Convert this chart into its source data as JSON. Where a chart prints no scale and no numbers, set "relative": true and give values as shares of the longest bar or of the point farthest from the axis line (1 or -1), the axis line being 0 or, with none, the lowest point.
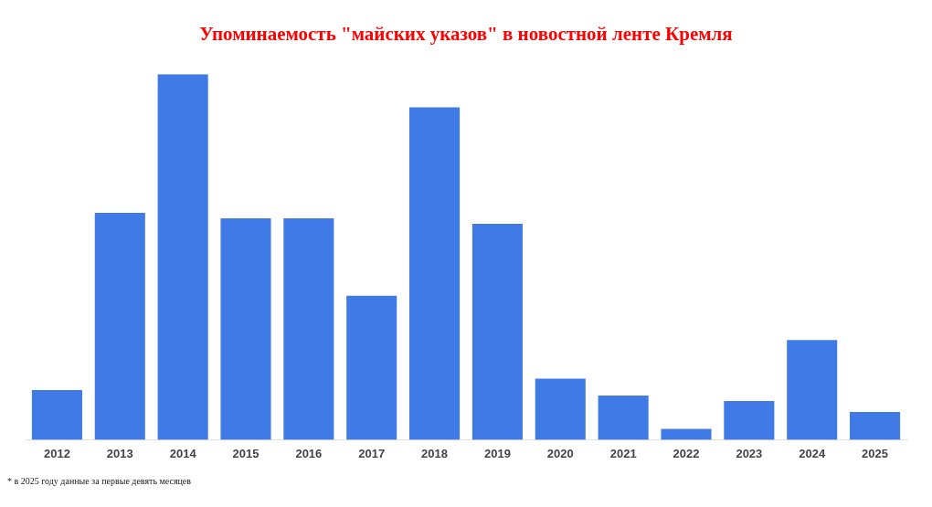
{
  "chart_data": {
    "type": "bar",
    "title": "Упоминаемость \"майских указов\" в новостной ленте Кремля",
    "categories": [
      "2012",
      "2013",
      "2014",
      "2015",
      "2016",
      "2017",
      "2018",
      "2019",
      "2020",
      "2021",
      "2022",
      "2023",
      "2024",
      "2025"
    ],
    "values": [
      0.136,
      0.621,
      1,
      0.606,
      0.606,
      0.394,
      0.909,
      0.591,
      0.167,
      0.121,
      0.03,
      0.106,
      0.273,
      0.076
    ],
    "color": "#3f7ae6",
    "relative": true,
    "grid": false,
    "legend": false,
    "annotations": [
      "* в 2025 году данные за первые девять месяцев"
    ]
  }
}
